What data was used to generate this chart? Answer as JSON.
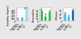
{
  "panels": [
    {
      "ylabel": "Solubility (mg/mL)",
      "bar_colors": [
        "#3dbfef",
        "#3dbfef",
        "#90e0ff"
      ],
      "values": [
        18,
        55,
        420
      ],
      "xlabels": [
        "Ibuprofen",
        "Ibu:ChCl\n1:1",
        "Ibu:ChCl\n1:2"
      ],
      "ylim": [
        0,
        470
      ],
      "yticks": [
        0,
        100,
        200,
        300,
        400
      ],
      "value_labels": [
        "18",
        "55",
        "420"
      ]
    },
    {
      "ylabel": "Permeability",
      "bar_colors": [
        "#33bb55",
        "#33bb55",
        "#33bb55"
      ],
      "values": [
        38,
        18,
        32
      ],
      "xlabels": [
        "Ibuprofen",
        "Ibu:ChCl\n1:1",
        "Ibu:ChCl\n1:2"
      ],
      "ylim": [
        0,
        48
      ],
      "yticks": [
        0,
        10,
        20,
        30,
        40
      ],
      "value_labels": [
        "38",
        "18",
        "32"
      ]
    },
    {
      "ylabel": "Diffusion",
      "bar_colors": [
        "#3dbfef",
        "#3dbfef",
        "#1a70c8"
      ],
      "values": [
        18,
        10,
        28
      ],
      "xlabels": [
        "Ibuprofen",
        "Ibu:ChCl\n1:1",
        "Ibu:ChCl\n1:2"
      ],
      "ylim": [
        0,
        36
      ],
      "yticks": [
        0,
        10,
        20,
        30
      ],
      "value_labels": [
        "18",
        "10",
        "28"
      ]
    }
  ],
  "bg_color": "#e8e8e8",
  "plot_bg": "#ffffff",
  "bar_width": 0.55,
  "fontsize": 2.8
}
